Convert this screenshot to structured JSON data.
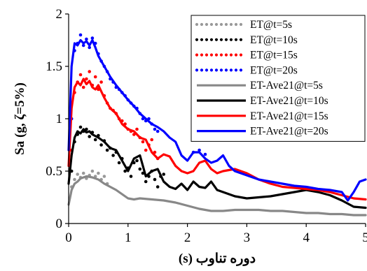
{
  "chart_data": {
    "type": "line",
    "xlabel": "دوره تناوب (s)",
    "ylabel": "Sa (g, ζ=5%)",
    "xlim": [
      0,
      5
    ],
    "ylim": [
      0,
      2
    ],
    "x_ticks": [
      "0",
      "1",
      "2",
      "3",
      "4",
      "5"
    ],
    "y_ticks": [
      "0",
      "0.5",
      "1",
      "1.5",
      "2"
    ],
    "grid": false,
    "legend_position": "top-right",
    "series": [
      {
        "name": "ET@t=5s",
        "style": "dotted",
        "color": "#999999",
        "x": [
          0.05,
          0.1,
          0.15,
          0.2,
          0.25,
          0.3,
          0.35,
          0.4,
          0.45,
          0.5,
          0.55,
          0.6,
          0.65
        ],
        "y": [
          0.35,
          0.42,
          0.47,
          0.44,
          0.48,
          0.43,
          0.46,
          0.5,
          0.45,
          0.48,
          0.42,
          0.45,
          0.38
        ]
      },
      {
        "name": "ET@t=10s",
        "style": "dotted",
        "color": "#000000",
        "x": [
          0.05,
          0.1,
          0.15,
          0.2,
          0.25,
          0.3,
          0.35,
          0.4,
          0.45,
          0.5,
          0.55,
          0.6,
          0.65,
          0.7,
          0.75,
          0.8,
          0.85,
          0.9,
          0.95,
          1.0,
          1.05,
          1.1,
          1.15,
          1.2,
          1.25,
          1.3,
          1.35,
          1.4,
          1.45,
          1.5,
          1.55,
          1.6
        ],
        "y": [
          0.5,
          0.78,
          0.85,
          0.92,
          0.88,
          0.9,
          0.83,
          0.87,
          0.8,
          0.84,
          0.75,
          0.79,
          0.7,
          0.72,
          0.65,
          0.68,
          0.58,
          0.62,
          0.5,
          0.53,
          0.45,
          0.58,
          0.6,
          0.52,
          0.48,
          0.4,
          0.45,
          0.5,
          0.42,
          0.35,
          0.45,
          0.47
        ]
      },
      {
        "name": "ET@t=15s",
        "style": "dotted",
        "color": "#ff0000",
        "x": [
          0.05,
          0.1,
          0.15,
          0.2,
          0.25,
          0.3,
          0.35,
          0.4,
          0.45,
          0.5,
          0.55,
          0.6,
          0.65,
          0.7,
          0.75,
          0.8,
          0.85,
          0.9,
          0.95,
          1.0,
          1.05,
          1.1,
          1.15,
          1.2,
          1.25,
          1.3,
          1.35,
          1.4,
          1.45,
          1.5
        ],
        "y": [
          0.7,
          1.25,
          1.35,
          1.42,
          1.3,
          1.38,
          1.45,
          1.32,
          1.4,
          1.28,
          1.35,
          1.22,
          1.15,
          1.1,
          1.08,
          1.05,
          1.0,
          0.98,
          0.95,
          0.9,
          0.88,
          0.85,
          0.9,
          0.82,
          0.78,
          0.7,
          0.75,
          0.8,
          0.68,
          0.62
        ]
      },
      {
        "name": "ET@t=20s",
        "style": "dotted",
        "color": "#0000ff",
        "x": [
          0.05,
          0.1,
          0.15,
          0.2,
          0.25,
          0.3,
          0.35,
          0.4,
          0.45,
          0.5,
          0.55,
          0.6,
          0.65,
          0.7,
          0.75,
          0.8,
          0.85,
          0.9,
          0.95,
          1.0,
          1.05,
          1.1,
          1.15,
          1.2,
          1.25,
          1.3,
          1.35,
          1.4,
          1.45,
          1.5,
          2.1,
          2.2,
          2.3
        ],
        "y": [
          1.0,
          1.65,
          1.72,
          1.8,
          1.7,
          1.76,
          1.68,
          1.77,
          1.72,
          1.62,
          1.55,
          1.5,
          1.45,
          1.38,
          1.35,
          1.3,
          1.28,
          1.25,
          1.22,
          1.18,
          1.15,
          1.12,
          1.1,
          1.05,
          1.0,
          0.98,
          1.0,
          0.95,
          0.9,
          0.88,
          0.68,
          0.7,
          0.66
        ]
      },
      {
        "name": "ET-Ave21@t=5s",
        "style": "solid",
        "color": "#888888",
        "x": [
          0.0,
          0.05,
          0.1,
          0.15,
          0.2,
          0.3,
          0.4,
          0.5,
          0.6,
          0.7,
          0.8,
          0.9,
          1.0,
          1.1,
          1.2,
          1.4,
          1.6,
          1.8,
          2.0,
          2.2,
          2.4,
          2.6,
          2.8,
          3.0,
          3.2,
          3.4,
          3.6,
          3.8,
          4.0,
          4.2,
          4.4,
          4.6,
          4.8,
          5.0
        ],
        "y": [
          0.18,
          0.32,
          0.38,
          0.4,
          0.43,
          0.45,
          0.44,
          0.42,
          0.38,
          0.35,
          0.32,
          0.28,
          0.24,
          0.23,
          0.24,
          0.23,
          0.22,
          0.2,
          0.17,
          0.14,
          0.12,
          0.12,
          0.13,
          0.13,
          0.13,
          0.12,
          0.12,
          0.11,
          0.1,
          0.1,
          0.09,
          0.09,
          0.08,
          0.08
        ]
      },
      {
        "name": "ET-Ave21@t=10s",
        "style": "solid",
        "color": "#000000",
        "x": [
          0.0,
          0.05,
          0.1,
          0.15,
          0.2,
          0.25,
          0.3,
          0.35,
          0.4,
          0.5,
          0.6,
          0.7,
          0.8,
          0.9,
          1.0,
          1.1,
          1.2,
          1.3,
          1.4,
          1.5,
          1.6,
          1.7,
          1.8,
          1.9,
          2.0,
          2.1,
          2.2,
          2.3,
          2.4,
          2.5,
          2.6,
          2.8,
          3.0,
          3.2,
          3.4,
          3.6,
          3.8,
          4.0,
          4.2,
          4.4,
          4.6,
          4.8,
          5.0
        ],
        "y": [
          0.38,
          0.65,
          0.82,
          0.88,
          0.86,
          0.9,
          0.87,
          0.88,
          0.85,
          0.82,
          0.78,
          0.72,
          0.7,
          0.6,
          0.5,
          0.62,
          0.65,
          0.45,
          0.5,
          0.52,
          0.4,
          0.35,
          0.33,
          0.38,
          0.32,
          0.4,
          0.35,
          0.34,
          0.4,
          0.32,
          0.3,
          0.26,
          0.24,
          0.25,
          0.26,
          0.28,
          0.3,
          0.32,
          0.3,
          0.27,
          0.22,
          0.16,
          0.15
        ]
      },
      {
        "name": "ET-Ave21@t=15s",
        "style": "solid",
        "color": "#ff0000",
        "x": [
          0.0,
          0.05,
          0.1,
          0.15,
          0.2,
          0.25,
          0.3,
          0.35,
          0.4,
          0.45,
          0.5,
          0.6,
          0.7,
          0.8,
          0.9,
          1.0,
          1.1,
          1.2,
          1.3,
          1.4,
          1.5,
          1.6,
          1.7,
          1.8,
          1.9,
          2.0,
          2.1,
          2.2,
          2.3,
          2.4,
          2.5,
          2.6,
          2.8,
          3.0,
          3.2,
          3.4,
          3.6,
          3.8,
          4.0,
          4.2,
          4.4,
          4.6,
          4.8,
          5.0
        ],
        "y": [
          0.55,
          1.1,
          1.3,
          1.35,
          1.32,
          1.38,
          1.33,
          1.36,
          1.3,
          1.28,
          1.32,
          1.2,
          1.1,
          1.05,
          0.95,
          0.9,
          0.88,
          0.82,
          0.8,
          0.68,
          0.62,
          0.66,
          0.64,
          0.55,
          0.5,
          0.48,
          0.5,
          0.58,
          0.6,
          0.52,
          0.48,
          0.5,
          0.52,
          0.48,
          0.42,
          0.38,
          0.35,
          0.34,
          0.33,
          0.32,
          0.3,
          0.27,
          0.24,
          0.23
        ]
      },
      {
        "name": "ET-Ave21@t=20s",
        "style": "solid",
        "color": "#0000ff",
        "x": [
          0.0,
          0.05,
          0.1,
          0.15,
          0.2,
          0.25,
          0.3,
          0.35,
          0.4,
          0.45,
          0.5,
          0.55,
          0.6,
          0.7,
          0.8,
          0.9,
          1.0,
          1.1,
          1.2,
          1.3,
          1.4,
          1.5,
          1.6,
          1.7,
          1.8,
          1.9,
          2.0,
          2.1,
          2.2,
          2.3,
          2.4,
          2.5,
          2.6,
          2.7,
          2.8,
          2.9,
          3.0,
          3.2,
          3.4,
          3.6,
          3.8,
          4.0,
          4.2,
          4.4,
          4.6,
          4.7,
          4.8,
          4.9,
          5.0
        ],
        "y": [
          0.7,
          1.5,
          1.72,
          1.7,
          1.75,
          1.72,
          1.74,
          1.7,
          1.75,
          1.68,
          1.6,
          1.55,
          1.5,
          1.4,
          1.32,
          1.25,
          1.18,
          1.12,
          1.05,
          1.0,
          0.95,
          0.92,
          0.88,
          0.82,
          0.78,
          0.65,
          0.6,
          0.68,
          0.68,
          0.62,
          0.58,
          0.6,
          0.65,
          0.55,
          0.5,
          0.48,
          0.46,
          0.42,
          0.4,
          0.38,
          0.36,
          0.35,
          0.33,
          0.32,
          0.3,
          0.22,
          0.3,
          0.4,
          0.42
        ]
      }
    ]
  }
}
